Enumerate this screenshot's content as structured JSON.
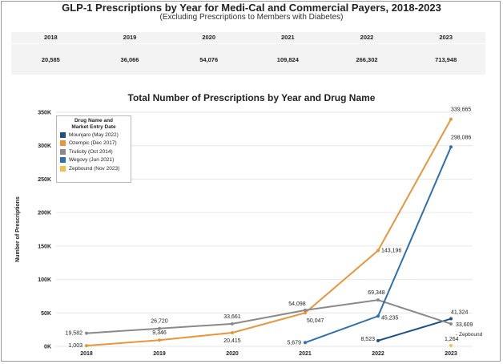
{
  "header": {
    "title": "GLP-1 Prescriptions by Year for Medi-Cal and Commercial Payers, 2018-2023",
    "subtitle": "(Excluding Prescriptions to Members with Diabetes)"
  },
  "summary": {
    "years": [
      "2018",
      "2019",
      "2020",
      "2021",
      "2022",
      "2023"
    ],
    "totals": [
      "20,585",
      "36,066",
      "54,076",
      "109,824",
      "266,302",
      "713,948"
    ]
  },
  "chart_data": {
    "type": "line",
    "title": "Total Number of Prescriptions by Year and Drug Name",
    "xlabel": "",
    "ylabel": "Number of Prescriptions",
    "categories": [
      "2018",
      "2019",
      "2020",
      "2021",
      "2022",
      "2023"
    ],
    "ylim": [
      0,
      350000
    ],
    "yticks": [
      0,
      50000,
      100000,
      150000,
      200000,
      250000,
      300000,
      350000
    ],
    "ytick_labels": [
      "0K",
      "50K",
      "100K",
      "150K",
      "200K",
      "250K",
      "300K",
      "350K"
    ],
    "grid": true,
    "legend": {
      "title_line1": "Drug Name and",
      "title_line2": "Market Entry Date",
      "placement": "top-left"
    },
    "series": [
      {
        "name": "Mounjaro (May 2022)",
        "color": "#1f4e8c",
        "values": [
          null,
          null,
          null,
          null,
          8523,
          41324
        ],
        "labels": [
          "",
          "",
          "",
          "",
          "8,523",
          "41,324"
        ]
      },
      {
        "name": "Ozempic (Dec 2017)",
        "color": "#e8963c",
        "values": [
          1003,
          9346,
          20415,
          50047,
          143196,
          339665
        ],
        "labels": [
          "1,003",
          "9,346",
          "20,415",
          "50,047",
          "143,196",
          "339,665"
        ]
      },
      {
        "name": "Trulicity (Oct 2014)",
        "color": "#8a8a8a",
        "values": [
          19582,
          26720,
          33661,
          54098,
          69348,
          33609
        ],
        "labels": [
          "19,582",
          "26,720",
          "33,661",
          "54,098",
          "69,348",
          "33,609"
        ]
      },
      {
        "name": "Wegovy (Jun 2021)",
        "color": "#2f6fb0",
        "values": [
          null,
          null,
          null,
          5679,
          45235,
          298086
        ],
        "labels": [
          "",
          "",
          "",
          "5,679",
          "45,235",
          "298,086"
        ]
      },
      {
        "name": "Zepbound (Nov 2023)",
        "color": "#f2c24a",
        "values": [
          null,
          null,
          null,
          null,
          null,
          1264
        ],
        "labels": [
          "",
          "",
          "",
          "",
          "",
          "1,264"
        ]
      }
    ],
    "annotations": [
      {
        "text": "- Zepbound",
        "series": "Zepbound (Nov 2023)",
        "category": "2023"
      }
    ]
  }
}
